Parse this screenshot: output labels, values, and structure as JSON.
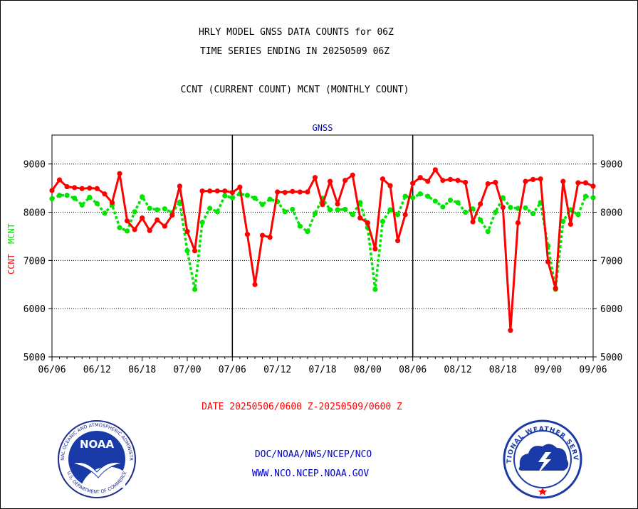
{
  "header": {
    "title_line1": "HRLY MODEL GNSS DATA COUNTS for 06Z",
    "title_line2": "TIME SERIES ENDING IN 20250509 06Z",
    "subtitle": "CCNT (CURRENT COUNT) MCNT (MONTHLY COUNT)"
  },
  "footer": {
    "date_range": "DATE 20250506/0600 Z-20250509/0600 Z",
    "org_line": "DOC/NOAA/NWS/NCEP/NCO",
    "url_line": "WWW.NCO.NCEP.NOAA.GOV"
  },
  "logos": {
    "noaa_text": "NOAA",
    "noaa_ring_text": "NATIONAL OCEANIC AND ATMOSPHERIC ADMINISTRATION",
    "noaa_ring_bottom": "U.S. DEPARTMENT OF COMMERCE",
    "nws_ring_text": "NATIONAL WEATHER SERVICE"
  },
  "colors": {
    "ccnt": "#ff0000",
    "mcnt": "#00e400",
    "label_blue": "#0000c8"
  },
  "chart_data": {
    "type": "line",
    "title": "GNSS",
    "ylabel_ccnt": "CCNT",
    "ylabel_mcnt": "MCNT",
    "ylim": [
      5000,
      9600
    ],
    "yticks": [
      5000,
      6000,
      7000,
      8000,
      9000
    ],
    "ytick_labels": [
      "5000",
      "6000",
      "7000",
      "8000",
      "9000"
    ],
    "xlim": [
      0,
      72
    ],
    "xtick_labels": [
      "06/06",
      "06/12",
      "06/18",
      "07/00",
      "07/06",
      "07/12",
      "07/18",
      "08/00",
      "08/06",
      "08/12",
      "08/18",
      "09/00",
      "09/06"
    ],
    "xtick_positions": [
      0,
      6,
      12,
      18,
      24,
      30,
      36,
      42,
      48,
      54,
      60,
      66,
      72
    ],
    "day_dividers": [
      24,
      48
    ],
    "grid": true,
    "series": [
      {
        "name": "CCNT",
        "color": "#ff0000",
        "x": [
          0,
          1,
          2,
          3,
          4,
          5,
          6,
          7,
          8,
          9,
          10,
          11,
          12,
          13,
          14,
          15,
          16,
          17,
          18,
          19,
          20,
          21,
          22,
          23,
          24,
          25,
          26,
          27,
          28,
          29,
          30,
          31,
          32,
          33,
          34,
          35,
          36,
          37,
          38,
          39,
          40,
          41,
          42,
          43,
          44,
          45,
          46,
          47,
          48,
          49,
          50,
          51,
          52,
          53,
          54,
          55,
          56,
          57,
          58,
          59,
          60,
          61,
          62,
          63,
          64,
          65,
          66,
          67,
          68,
          69,
          70,
          71,
          72
        ],
        "values": [
          8450,
          8670,
          8530,
          8510,
          8490,
          8500,
          8490,
          8380,
          8200,
          8800,
          7820,
          7640,
          7880,
          7620,
          7840,
          7710,
          7940,
          8540,
          7600,
          7200,
          8440,
          8440,
          8440,
          8440,
          8410,
          8520,
          7540,
          6500,
          7520,
          7480,
          8420,
          8410,
          8430,
          8420,
          8420,
          8720,
          8160,
          8640,
          8170,
          8660,
          8770,
          7880,
          7780,
          7240,
          8690,
          8550,
          7410,
          7950,
          8600,
          8720,
          8640,
          8880,
          8660,
          8680,
          8660,
          8620,
          7800,
          8170,
          8590,
          8620,
          8100,
          5550,
          7780,
          8640,
          8680,
          8690,
          6970,
          6420,
          8640,
          7750,
          8610,
          8610,
          8540
        ]
      },
      {
        "name": "MCNT",
        "color": "#00e400",
        "x": [
          0,
          1,
          2,
          3,
          4,
          5,
          6,
          7,
          8,
          9,
          10,
          11,
          12,
          13,
          14,
          15,
          16,
          17,
          18,
          19,
          20,
          21,
          22,
          23,
          24,
          25,
          26,
          27,
          28,
          29,
          30,
          31,
          32,
          33,
          34,
          35,
          36,
          37,
          38,
          39,
          40,
          41,
          42,
          43,
          44,
          45,
          46,
          47,
          48,
          49,
          50,
          51,
          52,
          53,
          54,
          55,
          56,
          57,
          58,
          59,
          60,
          61,
          62,
          63,
          64,
          65,
          66,
          67,
          68,
          69,
          70,
          71,
          72
        ],
        "values": [
          8280,
          8350,
          8350,
          8290,
          8150,
          8310,
          8180,
          7980,
          8150,
          7680,
          7610,
          8010,
          8320,
          8080,
          8050,
          8070,
          7990,
          8210,
          7200,
          6400,
          7790,
          8080,
          8010,
          8340,
          8300,
          8380,
          8350,
          8290,
          8160,
          8270,
          8220,
          8010,
          8060,
          7710,
          7600,
          7970,
          8290,
          8050,
          8050,
          8060,
          7950,
          8200,
          7680,
          6400,
          7810,
          8050,
          7950,
          8330,
          8300,
          8380,
          8330,
          8230,
          8110,
          8250,
          8200,
          8000,
          8070,
          7840,
          7600,
          8000,
          8300,
          8100,
          8080,
          8090,
          7970,
          8200,
          7300,
          6400,
          7810,
          8050,
          7950,
          8330,
          8300
        ]
      }
    ]
  }
}
